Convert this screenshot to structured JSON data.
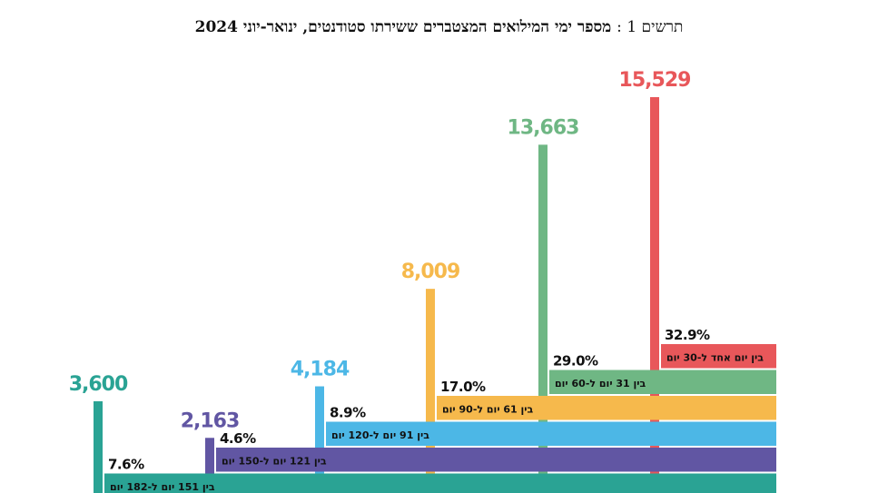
{
  "title": {
    "prefix": "תרשים 1 :",
    "text": "מספר ימי המילואים המצטברים ששירתו סטודנטים, ינואר-יוני 2024"
  },
  "chart_data": {
    "type": "bar",
    "series": [
      {
        "category": "בין יום אחד ל-30 יום",
        "value": 15529,
        "value_label": "15,529",
        "percent": "32.9%",
        "color": "#e8575a"
      },
      {
        "category": "בין 31 יום ל-60 יום",
        "value": 13663,
        "value_label": "13,663",
        "percent": "29.0%",
        "color": "#6fb784"
      },
      {
        "category": "בין 61 יום ל-90 יום",
        "value": 8009,
        "value_label": "8,009",
        "percent": "17.0%",
        "color": "#f6b94c"
      },
      {
        "category": "בין 91 יום ל-120 יום",
        "value": 4184,
        "value_label": "4,184",
        "percent": "8.9%",
        "color": "#4cb7e6"
      },
      {
        "category": "בין 121 יום ל-150 יום",
        "value": 2163,
        "value_label": "2,163",
        "percent": "4.6%",
        "color": "#6156a3"
      },
      {
        "category": "בין 151 יום ל-182 יום",
        "value": 3600,
        "value_label": "3,600",
        "percent": "7.6%",
        "color": "#2aa394"
      }
    ]
  }
}
